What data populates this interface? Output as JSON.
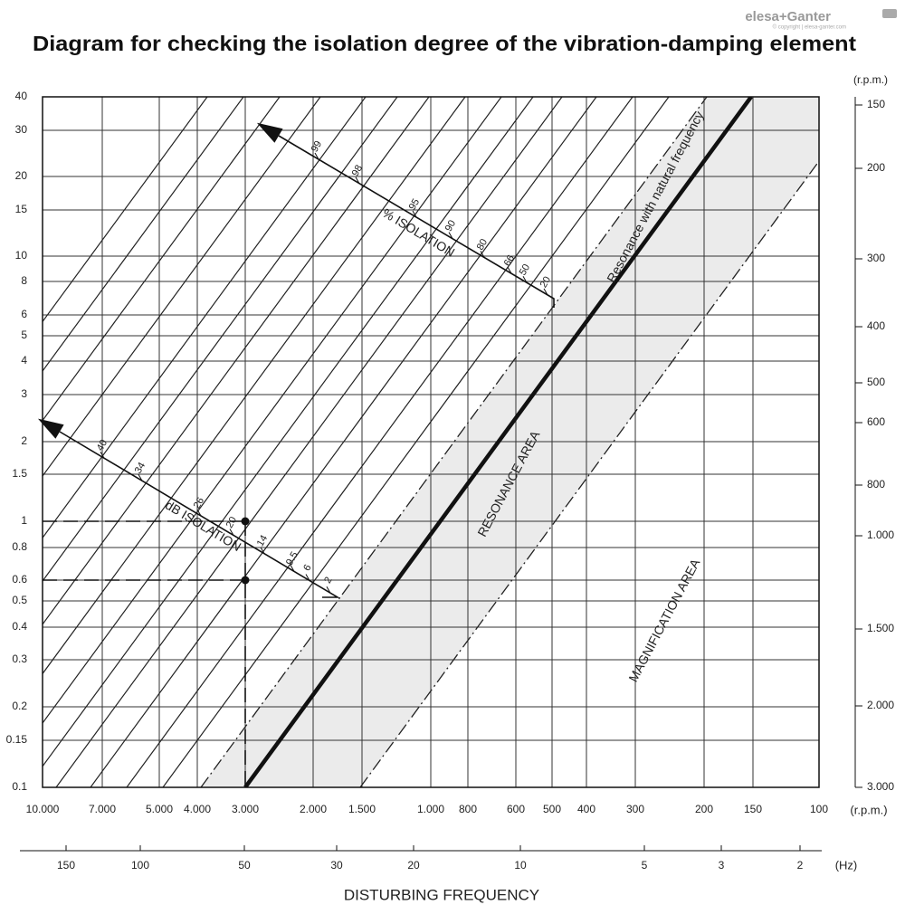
{
  "logo": "elesa+Ganter",
  "copyright": "© copyright | elesa-ganter.com",
  "title": "Diagram for checking the isolation degree of the vibration-damping element",
  "left_axis": {
    "ticks": [
      "40",
      "30",
      "20",
      "15",
      "10",
      "8",
      "6",
      "5",
      "4",
      "3",
      "2",
      "1.5",
      "1",
      "0.8",
      "0.6",
      "0.5",
      "0.4",
      "0.3",
      "0.2",
      "0.15",
      "0.1"
    ]
  },
  "right_axis": {
    "unit": "(r.p.m.)",
    "ticks": [
      "150",
      "200",
      "300",
      "400",
      "500",
      "600",
      "800",
      "1.000",
      "1.500",
      "2.000",
      "3.000"
    ]
  },
  "bottom_axis": {
    "unit": "(r.p.m.)",
    "ticks": [
      "10.000",
      "7.000",
      "5.000",
      "4.000",
      "3.000",
      "2.000",
      "1.500",
      "1.000",
      "800",
      "600",
      "500",
      "400",
      "300",
      "200",
      "150",
      "100"
    ]
  },
  "hz_axis": {
    "unit": "(Hz)",
    "ticks": [
      "150",
      "100",
      "50",
      "30",
      "20",
      "10",
      "5",
      "3",
      "2"
    ]
  },
  "x_title": "DISTURBING FREQUENCY",
  "percent_scale": {
    "label": "% ISOLATION",
    "ticks": [
      "99",
      "98",
      "95",
      "90",
      "80",
      "66",
      "50",
      "20"
    ]
  },
  "db_scale": {
    "label": "dB ISOLATION",
    "ticks": [
      "40",
      "34",
      "26",
      "20",
      "14",
      "9.5",
      "6",
      "2"
    ]
  },
  "annotations": {
    "resonance_line": "Resonance with natural frequency",
    "resonance_area": "RESONANCE AREA",
    "magnification_area": "MAGNIFICATION AREA"
  }
}
